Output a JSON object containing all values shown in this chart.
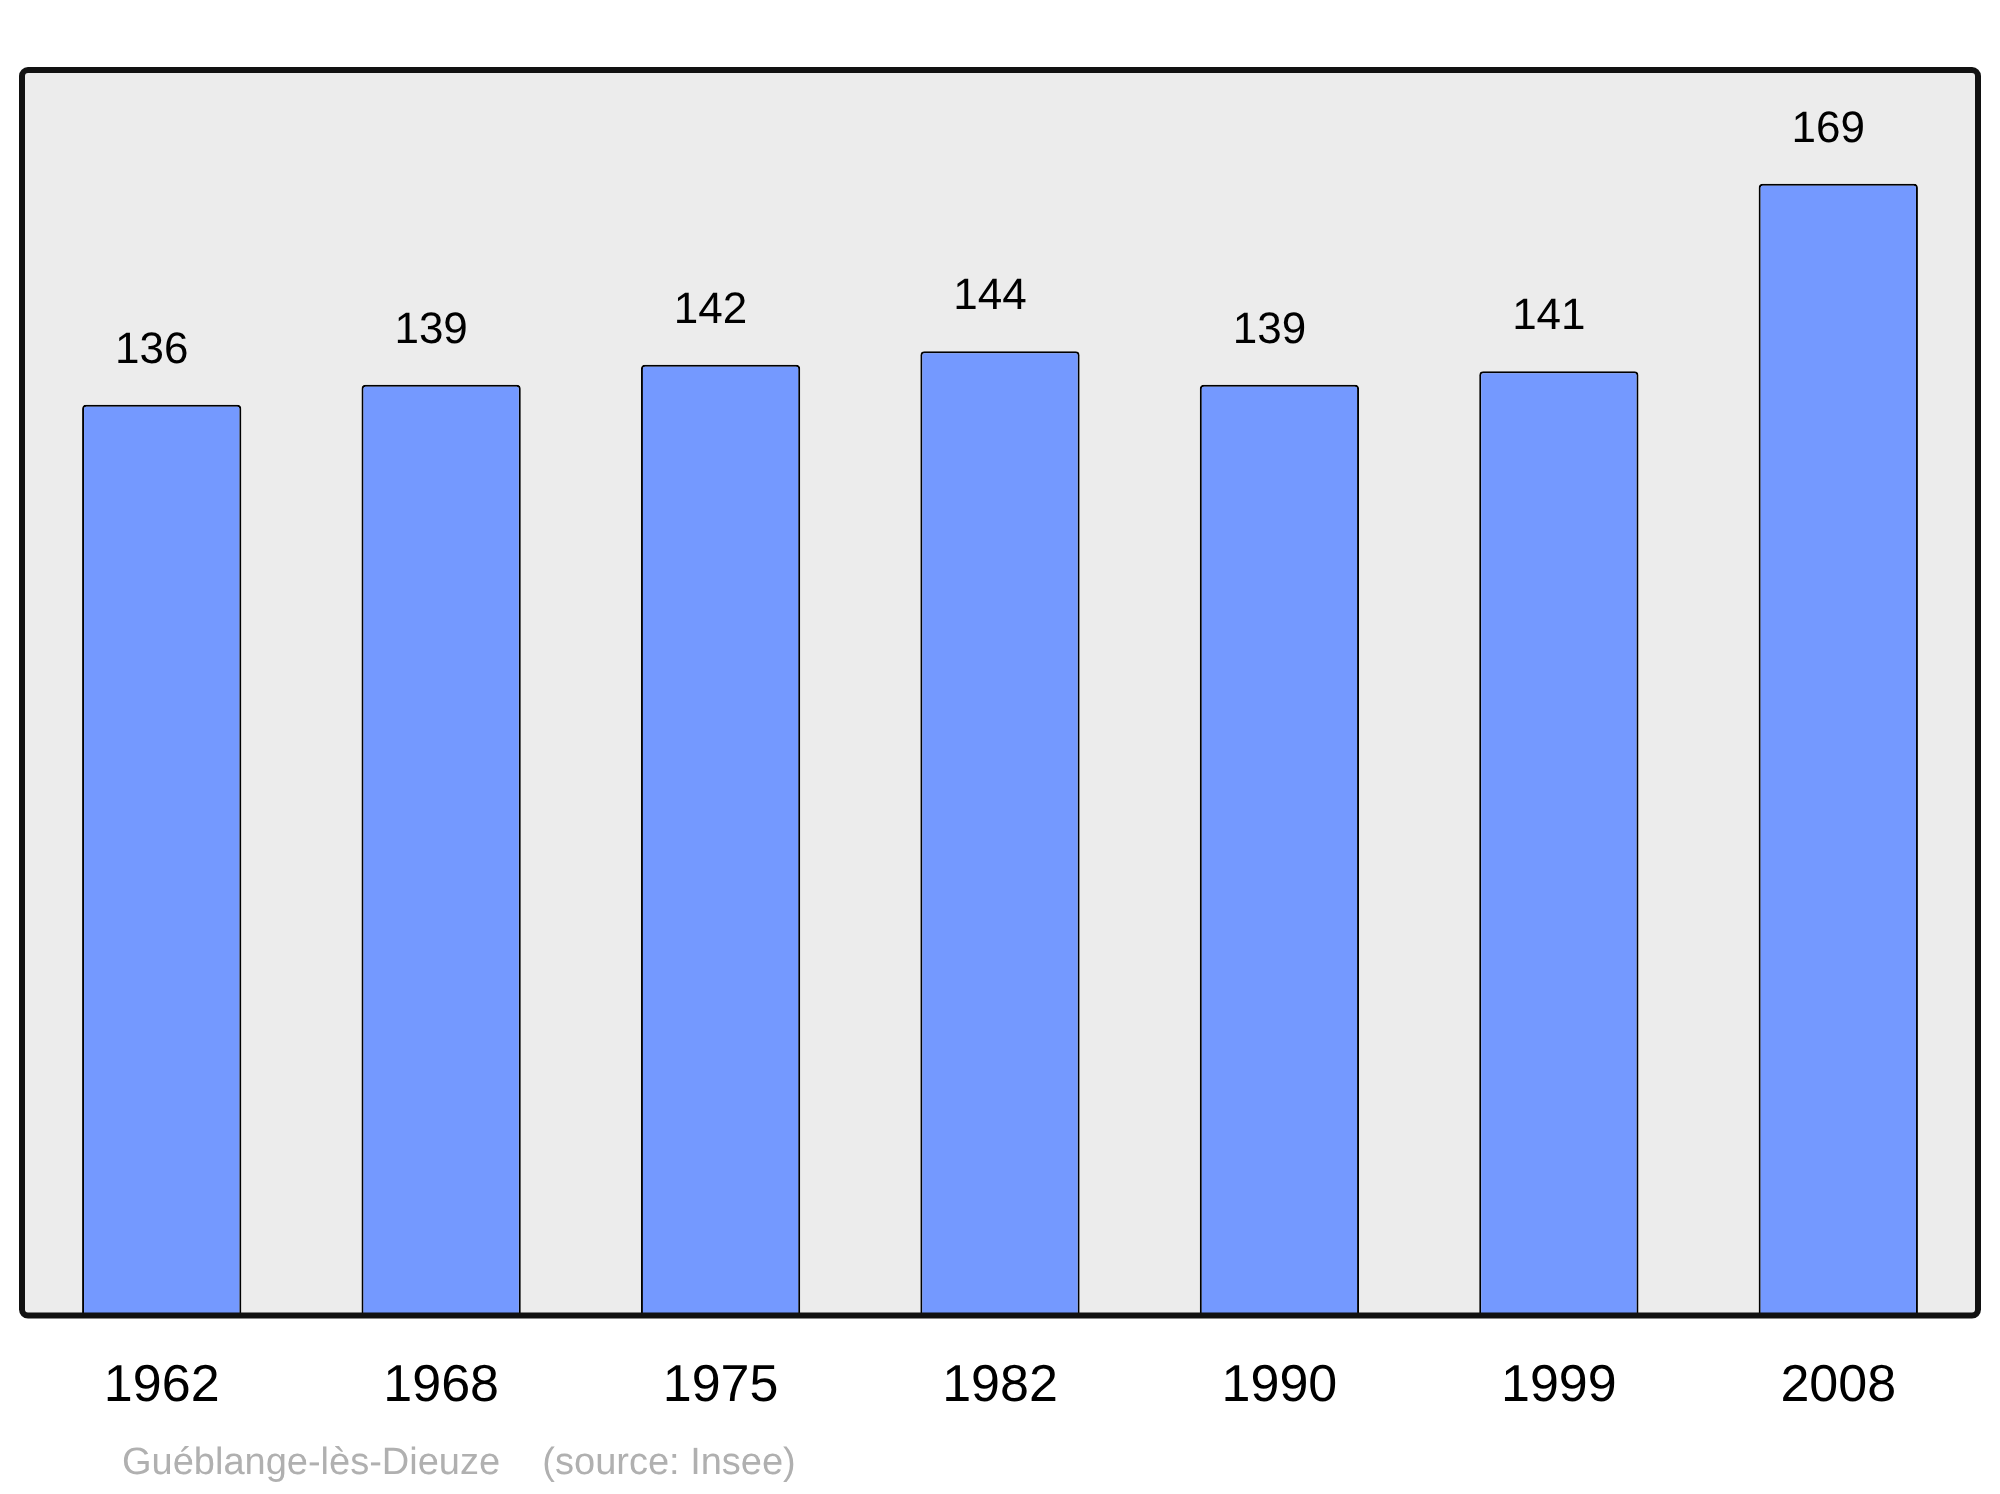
{
  "chart_data": {
    "type": "bar",
    "categories": [
      "1962",
      "1968",
      "1975",
      "1982",
      "1990",
      "1999",
      "2008"
    ],
    "values": [
      136,
      139,
      142,
      144,
      139,
      141,
      169
    ],
    "color": "#7499ff",
    "ylim": [
      0,
      186
    ],
    "data_labels": true,
    "grid": false,
    "legend": false,
    "annotations": [
      "Guéblange-lès-Dieuze    (source: Insee)"
    ]
  }
}
